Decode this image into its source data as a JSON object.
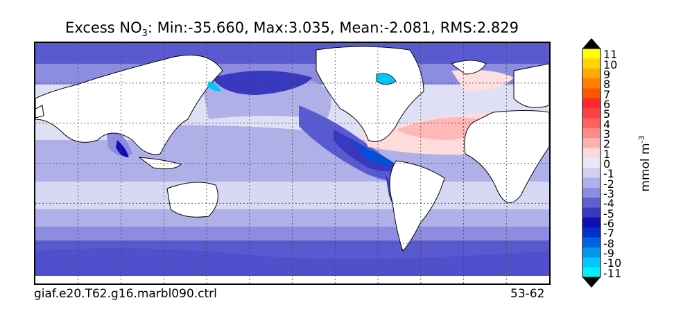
{
  "title": {
    "prefix": "Excess NO",
    "subscript": "3",
    "stats": ": Min:-35.660, Max:3.035, Mean:-2.081, RMS:2.829"
  },
  "footer": {
    "case_name": "giaf.e20.T62.g16.marbl090.ctrl",
    "years": "53-62"
  },
  "colorbar": {
    "units_label": "mmol m",
    "units_exponent": "-3",
    "labels": [
      "11",
      "10",
      "9",
      "8",
      "7",
      "6",
      "5",
      "4",
      "3",
      "2",
      "1",
      "0",
      "-1",
      "-2",
      "-3",
      "-4",
      "-5",
      "-6",
      "-7",
      "-8",
      "-9",
      "-10",
      "-11"
    ],
    "colors_top_to_bottom": [
      "#ffff00",
      "#ffd400",
      "#ffaa00",
      "#ff7f00",
      "#ff5500",
      "#ff2a2a",
      "#ff4040",
      "#ff6060",
      "#ff8a8a",
      "#ffb0b0",
      "#ffd8d8",
      "#e8e8f8",
      "#d0d0f0",
      "#b0b0e8",
      "#8c8ce0",
      "#6060d0",
      "#3838c0",
      "#1010b0",
      "#0030d0",
      "#0064e0",
      "#0096f0",
      "#00c8ff",
      "#00f0ff"
    ],
    "over_color": "#000000",
    "under_color": "#000000"
  },
  "map": {
    "projection": "global lat-lon, Pacific centered",
    "gridlines": "dotted",
    "land_color": "#ffffff",
    "coastline_color": "#000000"
  }
}
